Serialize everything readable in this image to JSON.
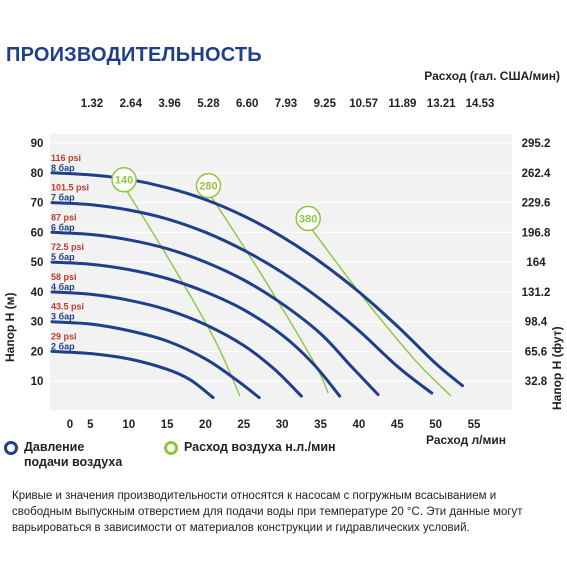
{
  "title": "ПРОИЗВОДИТЕЛЬНОСТЬ",
  "colors": {
    "pump_curve": "#1f3f8a",
    "air_curve": "#8dc63f",
    "bar_red": "#c0392b",
    "bar_blue": "#1f3f8a",
    "grid": "#e6e6e6"
  },
  "chart_data": {
    "type": "line",
    "top_axis_label": "Расход (гал. США/мин)",
    "top_ticks": [
      "1.32",
      "2.64",
      "3.96",
      "5.28",
      "6.60",
      "7.93",
      "9.25",
      "10.57",
      "11.89",
      "13.21",
      "14.53"
    ],
    "xlabel": "Расход л/мин",
    "x_ticks": [
      0,
      5,
      10,
      15,
      20,
      25,
      30,
      35,
      40,
      45,
      50,
      55
    ],
    "xlim": [
      0,
      55
    ],
    "ylabel_left": "Напор H (м)",
    "y_ticks_left": [
      10,
      20,
      30,
      40,
      50,
      60,
      70,
      80,
      90
    ],
    "ylim": [
      0,
      95
    ],
    "ylabel_right": "Напор H (фут)",
    "y_ticks_right": [
      {
        "value": 10,
        "label": "32.8"
      },
      {
        "value": 20,
        "label": "65.6"
      },
      {
        "value": 30,
        "label": "98.4"
      },
      {
        "value": 40,
        "label": "131.2"
      },
      {
        "value": 50,
        "label": "164"
      },
      {
        "value": 60,
        "label": "196.8"
      },
      {
        "value": 70,
        "label": "229.6"
      },
      {
        "value": 80,
        "label": "262.4"
      },
      {
        "value": 90,
        "label": "295.2"
      }
    ],
    "legend": [
      {
        "id": "pressure",
        "label_lines": [
          "Давление",
          "подачи воздуха"
        ]
      },
      {
        "id": "air",
        "label_lines": [
          "Расход воздуха н.л./мин"
        ]
      }
    ],
    "pressure_series": [
      {
        "psi": "29 psi",
        "bar": "2 бар",
        "points": [
          [
            0,
            20
          ],
          [
            5,
            19.3
          ],
          [
            10,
            17.5
          ],
          [
            15,
            14
          ],
          [
            18,
            10.5
          ],
          [
            21,
            4.5
          ]
        ]
      },
      {
        "psi": "43.5 psi",
        "bar": "3 бар",
        "points": [
          [
            0,
            30
          ],
          [
            5,
            29.2
          ],
          [
            10,
            27
          ],
          [
            15,
            23.5
          ],
          [
            20,
            17.5
          ],
          [
            24,
            10.5
          ],
          [
            27,
            4.5
          ]
        ]
      },
      {
        "psi": "58 psi",
        "bar": "4 бар",
        "points": [
          [
            0,
            40
          ],
          [
            5,
            39.2
          ],
          [
            10,
            37.2
          ],
          [
            15,
            34
          ],
          [
            20,
            29
          ],
          [
            25,
            22
          ],
          [
            29,
            14
          ],
          [
            32.5,
            5
          ]
        ]
      },
      {
        "psi": "72.5 psi",
        "bar": "5 бар",
        "points": [
          [
            0,
            50
          ],
          [
            5,
            49.3
          ],
          [
            10,
            47.5
          ],
          [
            15,
            44.5
          ],
          [
            20,
            40
          ],
          [
            25,
            34
          ],
          [
            30,
            25.5
          ],
          [
            34,
            16
          ],
          [
            37.5,
            5
          ]
        ]
      },
      {
        "psi": "87 psi",
        "bar": "6 бар",
        "points": [
          [
            0,
            60
          ],
          [
            5,
            59.3
          ],
          [
            10,
            57.5
          ],
          [
            15,
            54.5
          ],
          [
            20,
            50
          ],
          [
            25,
            44
          ],
          [
            30,
            36
          ],
          [
            35,
            26
          ],
          [
            39,
            15
          ],
          [
            42.5,
            5.5
          ]
        ]
      },
      {
        "psi": "101.5 psi",
        "bar": "7 бар",
        "points": [
          [
            0,
            70
          ],
          [
            5,
            69.3
          ],
          [
            10,
            67.5
          ],
          [
            15,
            64.5
          ],
          [
            20,
            60
          ],
          [
            25,
            54
          ],
          [
            30,
            46.5
          ],
          [
            35,
            37.5
          ],
          [
            40,
            27
          ],
          [
            45,
            15
          ],
          [
            49.5,
            6
          ]
        ]
      },
      {
        "psi": "116 psi",
        "bar": "8 бар",
        "points": [
          [
            0,
            80
          ],
          [
            5,
            79.3
          ],
          [
            10,
            77.8
          ],
          [
            15,
            75
          ],
          [
            20,
            71
          ],
          [
            25,
            65.5
          ],
          [
            30,
            58.5
          ],
          [
            35,
            50
          ],
          [
            40,
            40
          ],
          [
            45,
            28.5
          ],
          [
            50,
            16
          ],
          [
            53.5,
            8.5
          ]
        ]
      }
    ],
    "air_series": [
      {
        "label": "140",
        "points": [
          [
            9,
            77
          ],
          [
            15,
            52
          ],
          [
            21,
            25
          ],
          [
            24.5,
            5
          ]
        ]
      },
      {
        "label": "280",
        "points": [
          [
            20,
            75
          ],
          [
            27,
            47
          ],
          [
            34,
            17
          ],
          [
            36,
            6
          ]
        ]
      },
      {
        "label": "380",
        "points": [
          [
            33,
            64
          ],
          [
            40,
            40
          ],
          [
            47,
            18
          ],
          [
            52,
            5
          ]
        ]
      }
    ]
  },
  "footnote": "Кривые и значения производительности относятся к насосам с погружным всасыванием и свободным выпускным отверстием для подачи воды при температуре 20 °C. Эти данные могут варьироваться в зависимости от материалов конструкции и гидравлических условий."
}
